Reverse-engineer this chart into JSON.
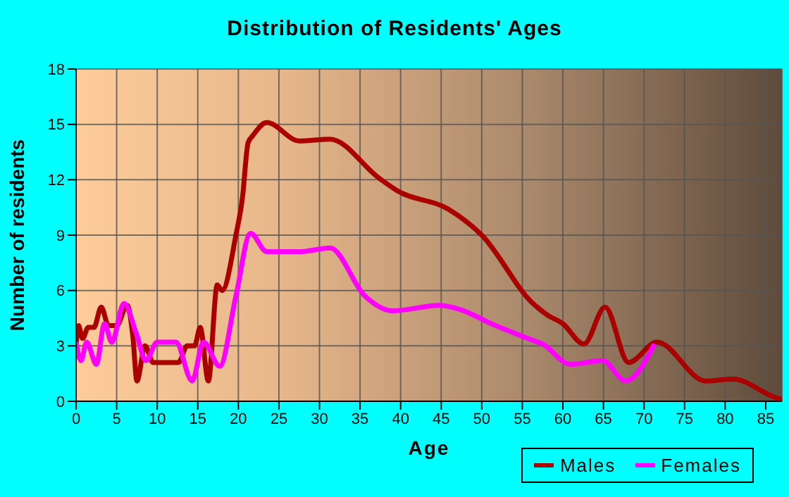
{
  "chart_data": {
    "type": "line",
    "title": "Distribution of Residents' Ages",
    "xlabel": "Age",
    "ylabel": "Number of residents",
    "xlim": [
      0,
      87
    ],
    "xticks": [
      0,
      5,
      10,
      15,
      20,
      25,
      30,
      35,
      40,
      45,
      50,
      55,
      60,
      65,
      70,
      75,
      80,
      85
    ],
    "ylim": [
      0,
      18
    ],
    "yticks": [
      0,
      3,
      6,
      9,
      12,
      15,
      18
    ],
    "grid": true,
    "legend": "bottom right",
    "marker": "none",
    "line_style": "solid",
    "series": [
      {
        "name": "Males",
        "color": "#aa0000",
        "x": [
          0,
          0.3,
          0.8,
          1.5,
          2.2,
          3.1,
          4,
          5,
          6.3,
          7,
          7.5,
          8.5,
          9.5,
          12.6,
          13.7,
          14.6,
          15.3,
          16.3,
          17.4,
          18,
          19.7,
          20.5,
          21.2,
          21.8,
          23.5,
          27.5,
          31.3,
          37.3,
          39.6,
          45.9,
          50,
          56.3,
          58,
          60,
          62.6,
          65.2,
          68.1,
          71.6,
          77.6,
          81,
          86.2,
          87
        ],
        "values": [
          3,
          4.1,
          3.4,
          4,
          4,
          5.1,
          4.1,
          4.1,
          5.2,
          3.5,
          1.1,
          3,
          2.1,
          2.1,
          3,
          3,
          4,
          1.1,
          6.3,
          6,
          9,
          11,
          14,
          14.4,
          15.1,
          14.1,
          14.2,
          12.1,
          11.4,
          10.4,
          9,
          5.3,
          4.7,
          4.2,
          3.1,
          5.1,
          2.1,
          3.2,
          1.1,
          1.2,
          0.2,
          0.1
        ]
      },
      {
        "name": "Females",
        "color": "#ff00ff",
        "x": [
          0,
          0.6,
          1.3,
          2.5,
          3.5,
          4.4,
          5.9,
          7.4,
          8.6,
          10,
          12.3,
          14.3,
          15.7,
          17.7,
          19.7,
          21.5,
          23.5,
          27.5,
          31.3,
          35.6,
          39,
          44.8,
          47.1,
          51.7,
          56.3,
          57.5,
          60.9,
          64.9,
          67.7,
          71.3
        ],
        "values": [
          3.2,
          2.2,
          3.2,
          2,
          4.2,
          3.2,
          5.3,
          3.7,
          2.2,
          3.2,
          3.2,
          1.1,
          3.2,
          1.9,
          5.7,
          9.1,
          8.1,
          8.1,
          8.3,
          5.7,
          4.9,
          5.2,
          5,
          4.1,
          3.3,
          3.1,
          2,
          2.2,
          1.1,
          3.1
        ]
      }
    ]
  }
}
